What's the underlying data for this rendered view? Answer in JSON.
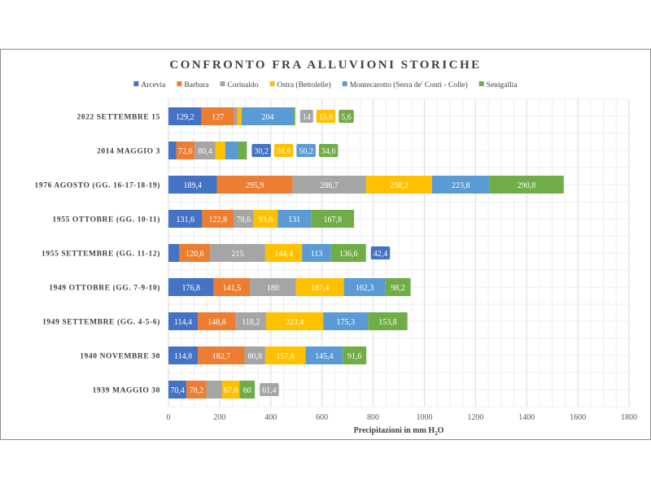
{
  "chart_data": {
    "type": "bar",
    "orientation": "horizontal",
    "stacked": true,
    "title": "CONFRONTO FRA ALLUVIONI STORICHE",
    "xlabel": "Precipitazioni in mm H2O",
    "xlabel_parts": {
      "main": "Precipitazioni in mm H",
      "sub": "2",
      "tail": "O"
    },
    "ylabel": "",
    "xlim": [
      0,
      1800
    ],
    "xticks": [
      "0",
      "200",
      "400",
      "600",
      "800",
      "1000",
      "1200",
      "1400",
      "1600",
      "1800"
    ],
    "grid": true,
    "legend_position": "top",
    "categories": [
      "2022 SETTEMBRE 15",
      "2014 MAGGIO 3",
      "1976 AGOSTO (GG. 16-17-18-19)",
      "1955 OTTOBRE (GG. 10-11)",
      "1955 SETTEMBRE (GG. 11-12)",
      "1949 OTTOBRE (GG. 7-9-10)",
      "1949 SETTEMBRE (GG. 4-5-6)",
      "1940 NOVEMBRE 30",
      "1939 MAGGIO 30"
    ],
    "series": [
      {
        "name": "Arcevia",
        "color": "#4472C4",
        "values": [
          129.2,
          30.2,
          189.4,
          131.6,
          42.4,
          176.8,
          114.4,
          114.8,
          70.4
        ]
      },
      {
        "name": "Barbara",
        "color": "#ED7D31",
        "values": [
          127,
          72.6,
          295.9,
          122.8,
          120.6,
          141.5,
          148.8,
          182.7,
          78.2
        ]
      },
      {
        "name": "Corinaldo",
        "color": "#A5A5A5",
        "values": [
          14,
          80.4,
          286.7,
          78.6,
          215,
          180,
          118.2,
          80.8,
          61.4
        ]
      },
      {
        "name": "Ostra (Bettolelle)",
        "color": "#FFC000",
        "values": [
          15.6,
          38.6,
          258.2,
          93.6,
          144.4,
          187.4,
          223.4,
          157.8,
          67.6
        ]
      },
      {
        "name": "Montecarotto (Serra de' Conti - Colle)",
        "color": "#5B9BD5",
        "values": [
          204,
          50.2,
          223.8,
          131,
          113,
          162.3,
          175.3,
          145.4,
          null
        ]
      },
      {
        "name": "Senigallia",
        "color": "#70AD47",
        "values": [
          5.6,
          34.6,
          290.8,
          167.8,
          136.6,
          98.2,
          153.8,
          91.6,
          60
        ]
      }
    ]
  }
}
